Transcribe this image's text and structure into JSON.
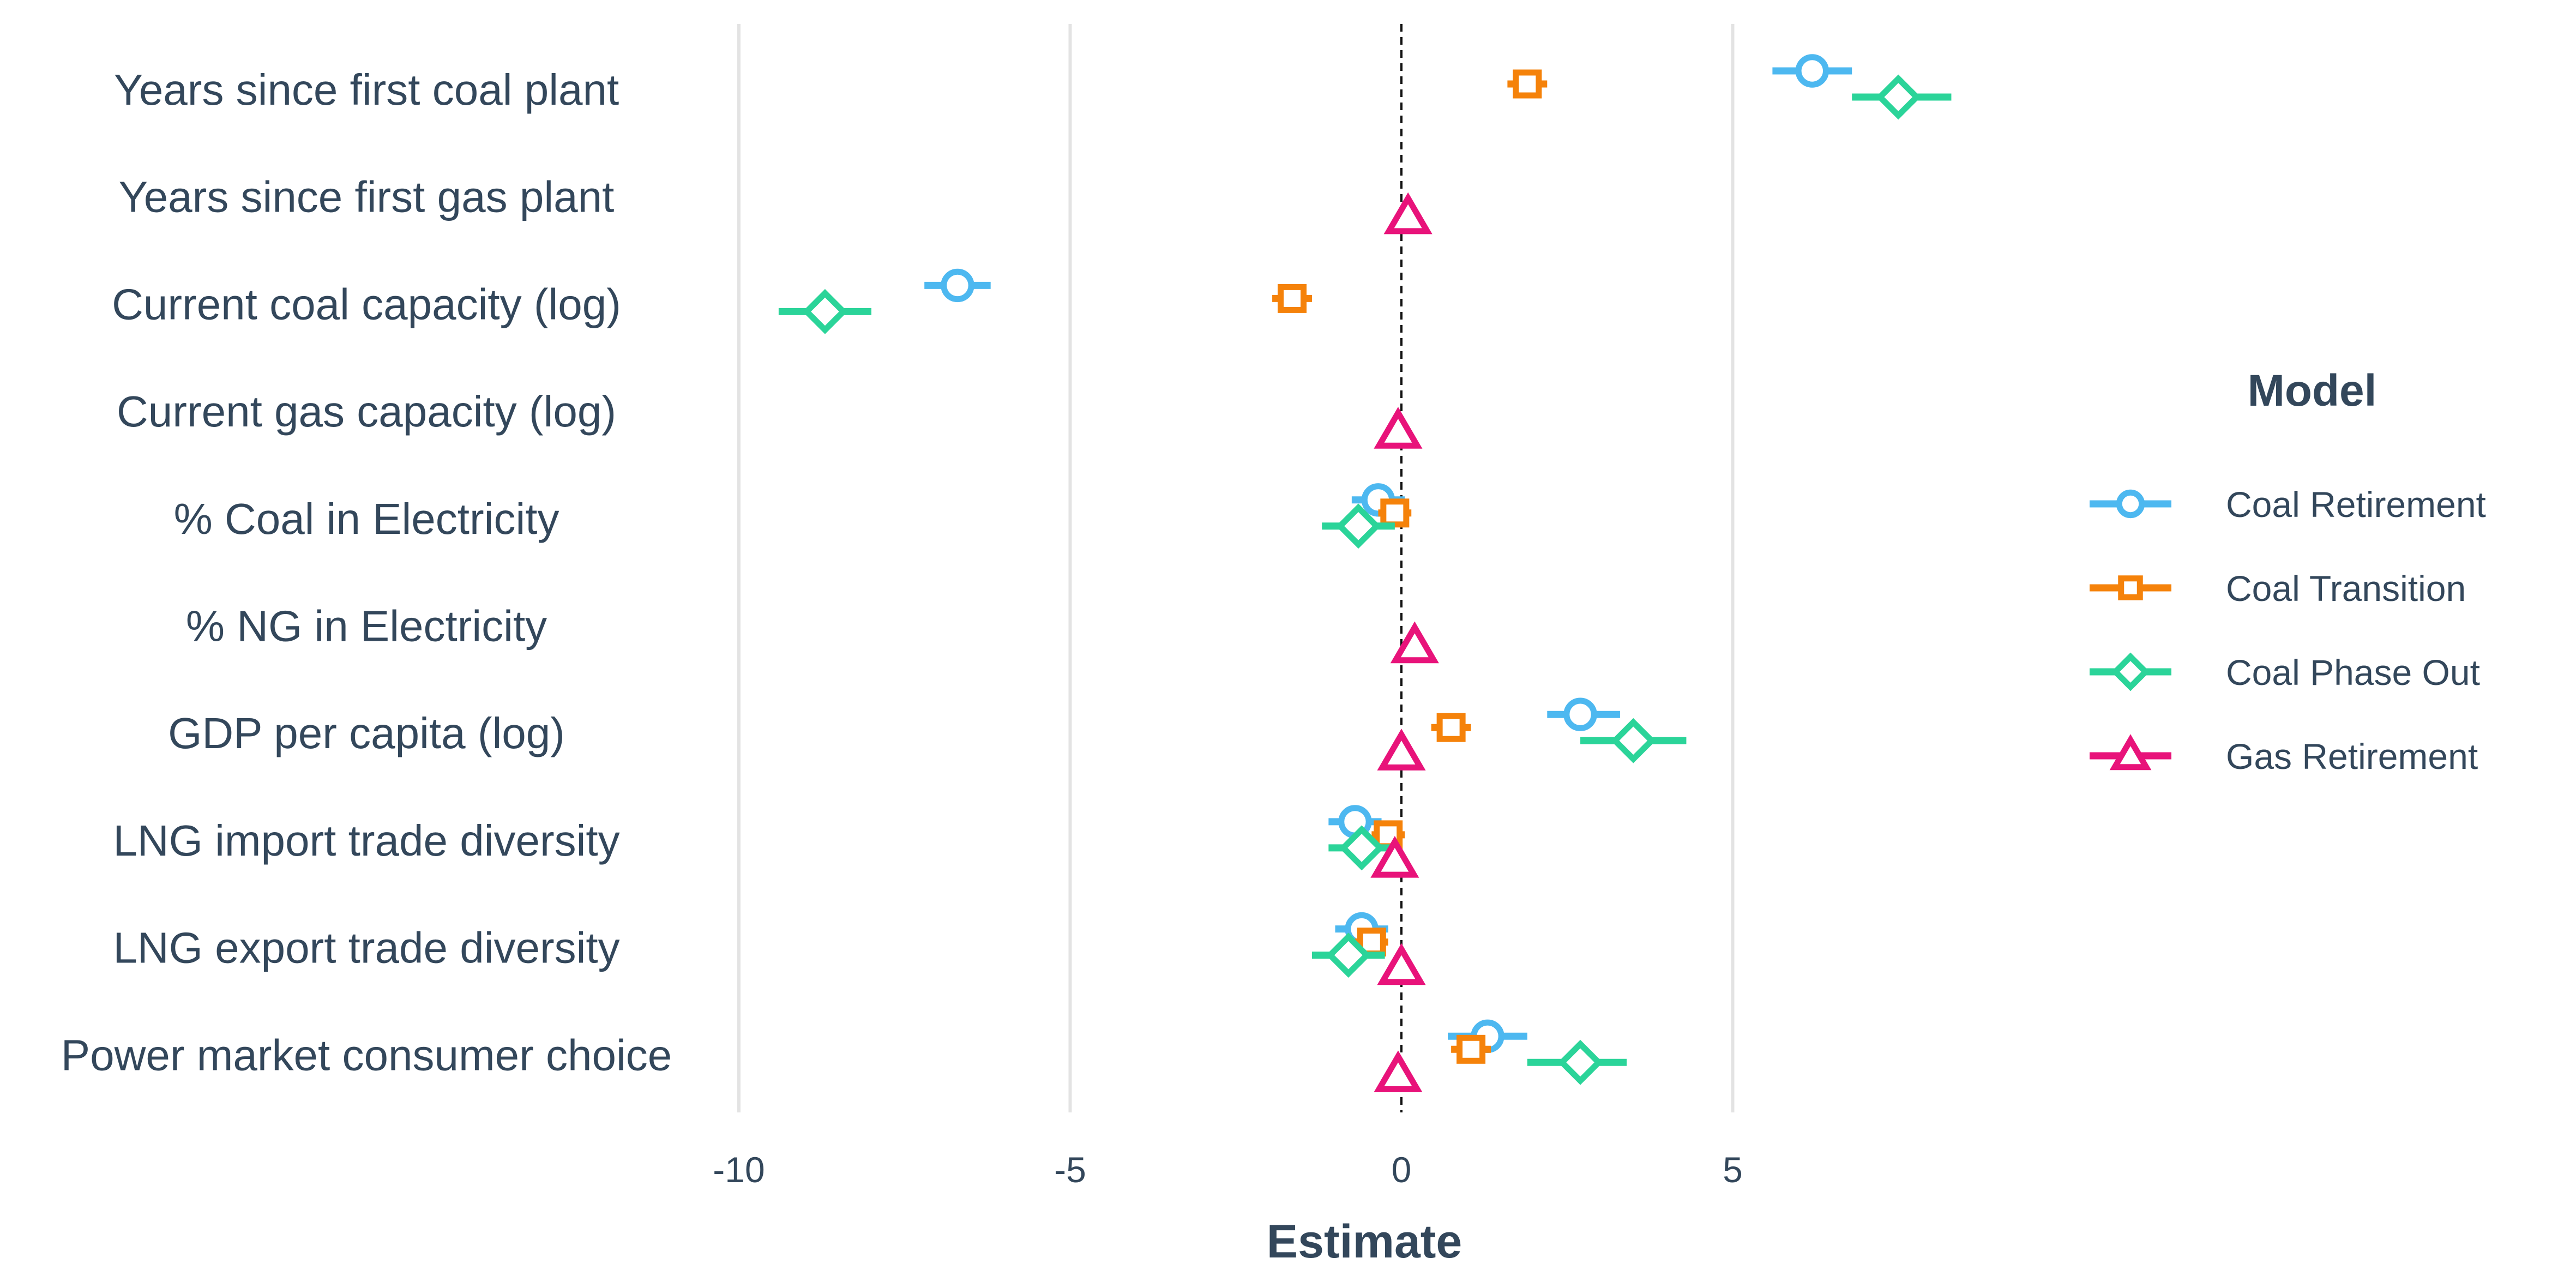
{
  "chart_data": {
    "type": "scatter",
    "subtype": "coefficient-plot",
    "xlabel": "Estimate",
    "xlim": [
      -10.6,
      10.1
    ],
    "xticks": [
      -10,
      -5,
      0,
      5
    ],
    "xtick_labels": [
      "-10",
      "-5",
      "0",
      "5"
    ],
    "reference_line": 0,
    "grid": "vertical major",
    "categories": [
      "Years since first coal plant",
      "Years since first gas plant",
      "Current coal capacity (log)",
      "Current gas capacity (log)",
      "% Coal in Electricity",
      "% NG in Electricity",
      "GDP per capita (log)",
      "LNG import trade diversity",
      "LNG export trade diversity",
      "Power market consumer choice"
    ],
    "legend": {
      "title": "Model",
      "position": "right"
    },
    "series": [
      {
        "name": "Coal Retirement",
        "color": "#4db8f0",
        "marker": "circle",
        "points": [
          {
            "term": "Years since first coal plant",
            "estimate": 6.2,
            "low": 5.6,
            "high": 6.8
          },
          {
            "term": "Current coal capacity (log)",
            "estimate": -6.7,
            "low": -7.2,
            "high": -6.2
          },
          {
            "term": "% Coal in Electricity",
            "estimate": -0.35,
            "low": -0.75,
            "high": 0.05
          },
          {
            "term": "GDP per capita (log)",
            "estimate": 2.7,
            "low": 2.2,
            "high": 3.3
          },
          {
            "term": "LNG import trade diversity",
            "estimate": -0.7,
            "low": -1.1,
            "high": -0.3
          },
          {
            "term": "LNG export trade diversity",
            "estimate": -0.6,
            "low": -1.0,
            "high": -0.2
          },
          {
            "term": "Power market consumer choice",
            "estimate": 1.3,
            "low": 0.7,
            "high": 1.9
          }
        ]
      },
      {
        "name": "Coal Transition",
        "color": "#f5820a",
        "marker": "square",
        "points": [
          {
            "term": "Years since first coal plant",
            "estimate": 1.9,
            "low": 1.6,
            "high": 2.2
          },
          {
            "term": "Current coal capacity (log)",
            "estimate": -1.65,
            "low": -1.95,
            "high": -1.35
          },
          {
            "term": "% Coal in Electricity",
            "estimate": -0.1,
            "low": -0.35,
            "high": 0.15
          },
          {
            "term": "GDP per capita (log)",
            "estimate": 0.75,
            "low": 0.45,
            "high": 1.05
          },
          {
            "term": "LNG import trade diversity",
            "estimate": -0.2,
            "low": -0.45,
            "high": 0.05
          },
          {
            "term": "LNG export trade diversity",
            "estimate": -0.45,
            "low": -0.7,
            "high": -0.2
          },
          {
            "term": "Power market consumer choice",
            "estimate": 1.05,
            "low": 0.75,
            "high": 1.35
          }
        ]
      },
      {
        "name": "Coal Phase Out",
        "color": "#2bd499",
        "marker": "diamond",
        "points": [
          {
            "term": "Years since first coal plant",
            "estimate": 7.5,
            "low": 6.8,
            "high": 8.3
          },
          {
            "term": "Current coal capacity (log)",
            "estimate": -8.7,
            "low": -9.4,
            "high": -8.0
          },
          {
            "term": "% Coal in Electricity",
            "estimate": -0.65,
            "low": -1.2,
            "high": -0.1
          },
          {
            "term": "GDP per capita (log)",
            "estimate": 3.5,
            "low": 2.7,
            "high": 4.3
          },
          {
            "term": "LNG import trade diversity",
            "estimate": -0.6,
            "low": -1.1,
            "high": -0.1
          },
          {
            "term": "LNG export trade diversity",
            "estimate": -0.8,
            "low": -1.35,
            "high": -0.25
          },
          {
            "term": "Power market consumer choice",
            "estimate": 2.7,
            "low": 1.9,
            "high": 3.4
          }
        ]
      },
      {
        "name": "Gas Retirement",
        "color": "#e8137a",
        "marker": "triangle",
        "points": [
          {
            "term": "Years since first gas plant",
            "estimate": 0.1,
            "low": -0.05,
            "high": 0.25
          },
          {
            "term": "Current gas capacity (log)",
            "estimate": -0.05,
            "low": -0.2,
            "high": 0.1
          },
          {
            "term": "% NG in Electricity",
            "estimate": 0.2,
            "low": 0.05,
            "high": 0.35
          },
          {
            "term": "GDP per capita (log)",
            "estimate": 0.0,
            "low": -0.15,
            "high": 0.15
          },
          {
            "term": "LNG import trade diversity",
            "estimate": -0.1,
            "low": -0.25,
            "high": 0.05
          },
          {
            "term": "LNG export trade diversity",
            "estimate": 0.0,
            "low": -0.15,
            "high": 0.15
          },
          {
            "term": "Power market consumer choice",
            "estimate": -0.05,
            "low": -0.2,
            "high": 0.1
          }
        ]
      }
    ]
  }
}
